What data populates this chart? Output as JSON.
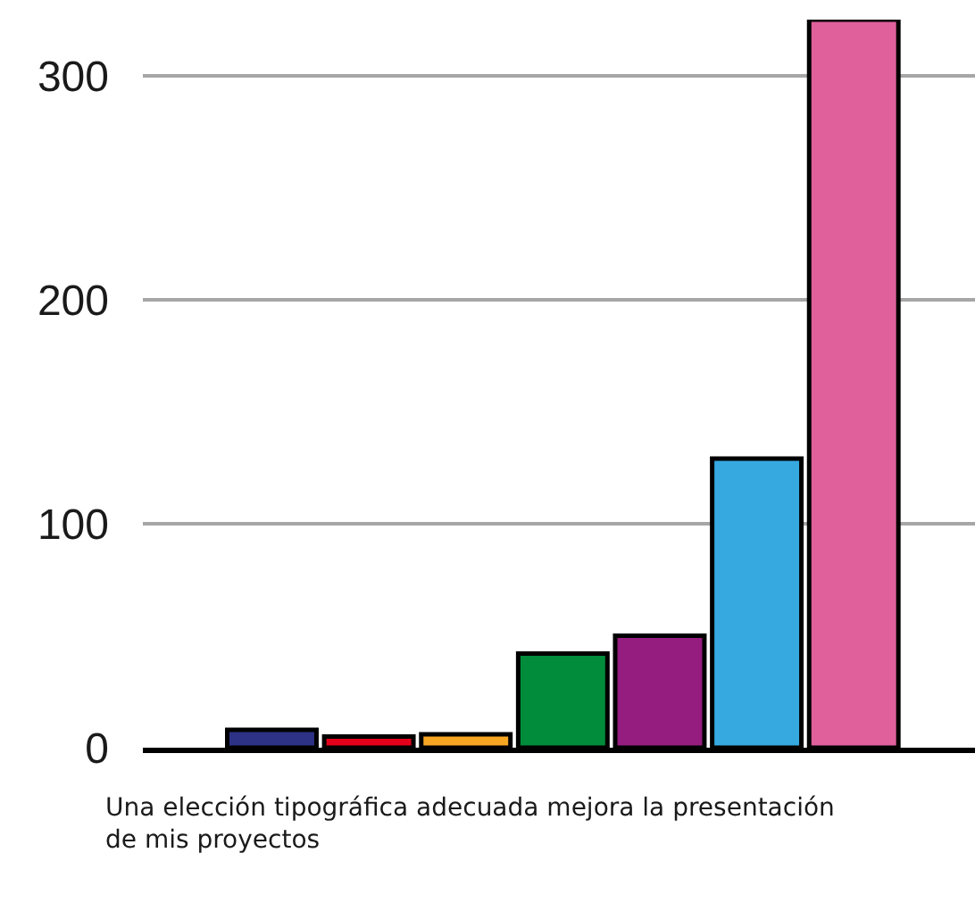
{
  "chart_data": {
    "type": "bar",
    "xlabel": "Una elección tipográfica adecuada mejora la presentación de mis proyectos",
    "categories": [
      null,
      null,
      null,
      null,
      null,
      null,
      null
    ],
    "values": [
      8,
      5,
      6,
      42,
      50,
      129,
      325
    ],
    "colors": [
      "#2e3286",
      "#e3001b",
      "#f6a623",
      "#008c3a",
      "#951d80",
      "#36a9e1",
      "#e0609c"
    ],
    "ylim": [
      0,
      325
    ],
    "yticks": [
      0,
      100,
      200,
      300
    ],
    "grid": "y"
  }
}
